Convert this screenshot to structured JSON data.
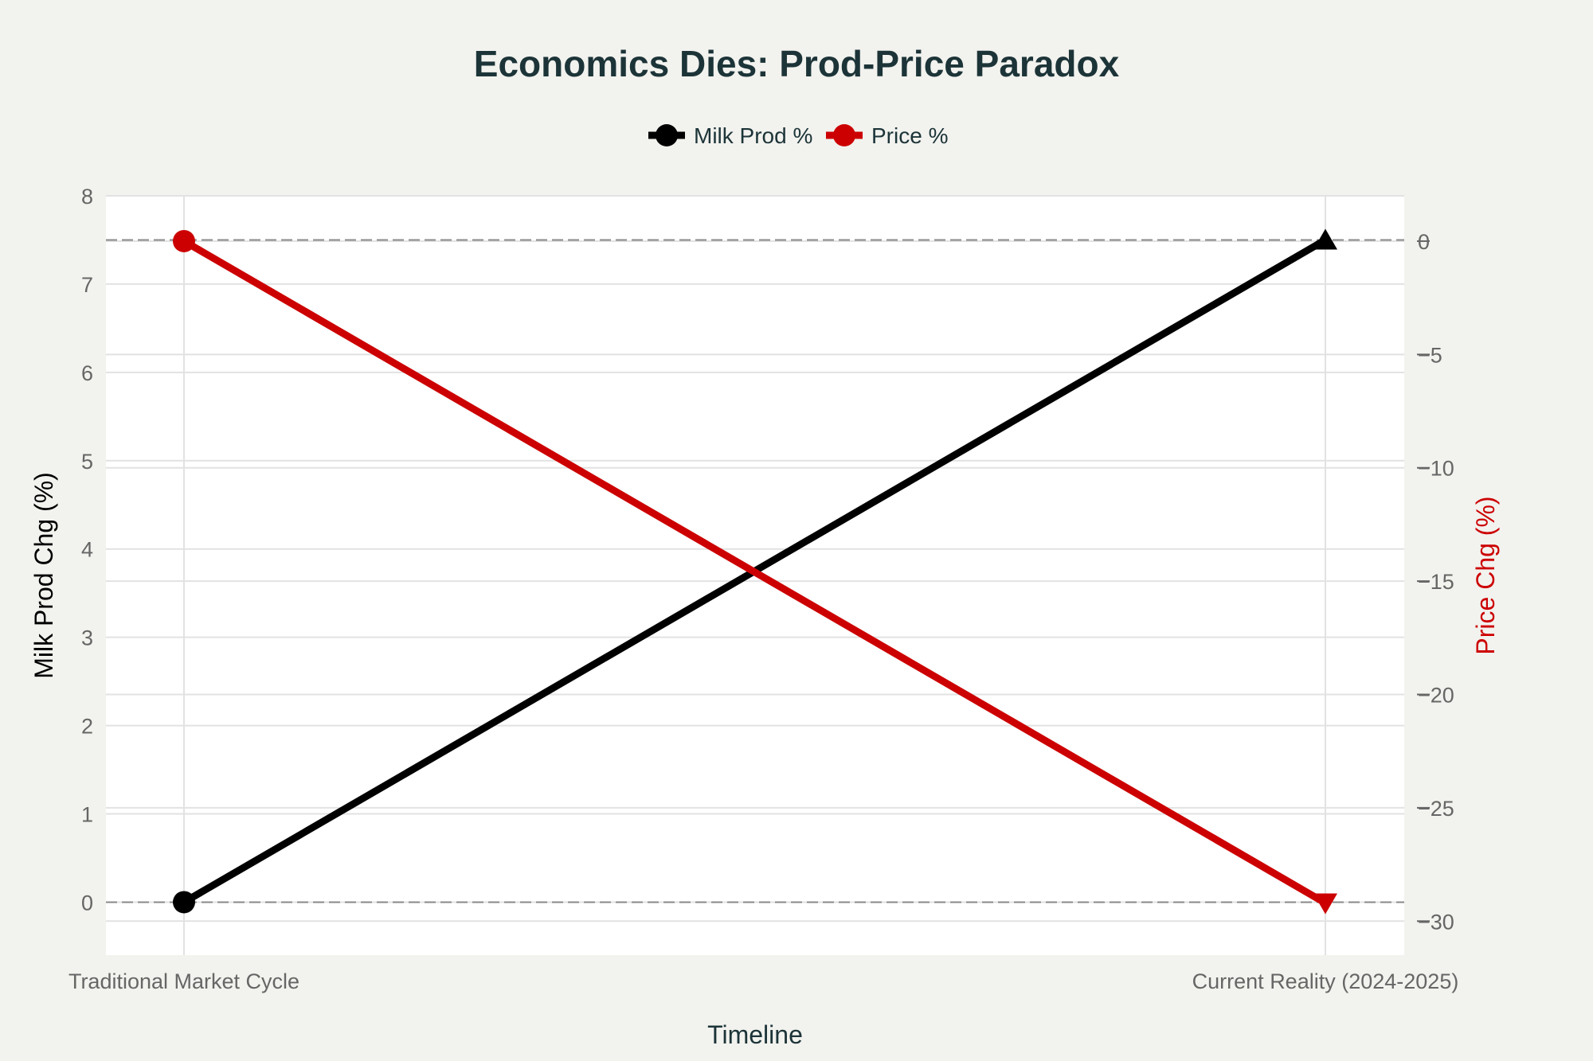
{
  "chart_data": {
    "type": "line",
    "title": "Economics Dies: Prod-Price Paradox",
    "xlabel": "Timeline",
    "ylabel": "Milk Prod Chg (%)",
    "y2label": "Price Chg (%)",
    "categories": [
      "Traditional Market Cycle",
      "Current Reality (2024-2025)"
    ],
    "series": [
      {
        "name": "Milk Prod %",
        "axis": "left",
        "values": [
          0,
          7.5
        ],
        "color": "#000000",
        "markers": [
          "circle",
          "triangle-up"
        ]
      },
      {
        "name": "Price %",
        "axis": "right",
        "values": [
          0,
          -29.2
        ],
        "color": "#cc0000",
        "markers": [
          "circle",
          "triangle-down"
        ]
      }
    ],
    "ylim": [
      -0.6,
      8
    ],
    "y2lim": [
      -31.5,
      2
    ],
    "yticks": [
      "0",
      "1",
      "2",
      "3",
      "4",
      "5",
      "6",
      "7",
      "8"
    ],
    "y2ticks": [
      "−30",
      "−25",
      "−20",
      "−15",
      "−10",
      "−5",
      "0"
    ],
    "y2tick_values": [
      -30,
      -25,
      -20,
      -15,
      -10,
      -5,
      0
    ],
    "reference_lines": [
      0,
      7.5
    ],
    "legend_position": "top-center",
    "grid": true,
    "colors": {
      "background": "#f2f2ee",
      "plot_background": "#ffffff",
      "title": "#1c3438",
      "y2label": "#cc0000"
    }
  }
}
